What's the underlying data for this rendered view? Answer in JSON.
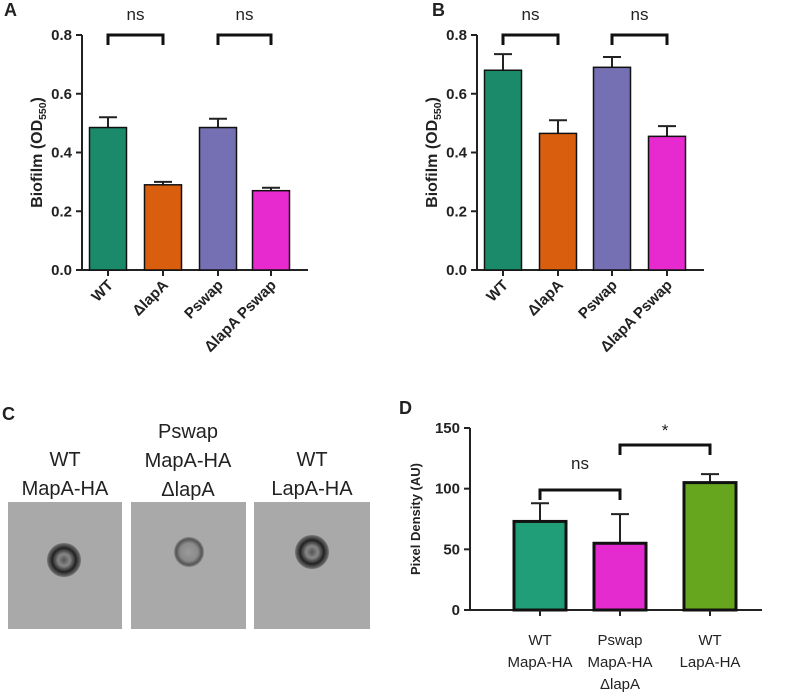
{
  "chart_data": [
    {
      "type": "bar",
      "panel": "A",
      "ylabel": [
        "Biofilm (OD",
        "550",
        ")"
      ],
      "categories": [
        "WT",
        "ΔlapA",
        "Pswap",
        "ΔlapA Pswap"
      ],
      "values": [
        0.485,
        0.29,
        0.485,
        0.27
      ],
      "errors": [
        0.035,
        0.01,
        0.03,
        0.01
      ],
      "colors": [
        "#1b8a6b",
        "#d95f0e",
        "#7570b3",
        "#e729d0"
      ],
      "ylim": [
        0,
        0.8
      ],
      "yticks": [
        {
          "value": 0,
          "label": "0.0"
        },
        0.2,
        0.4,
        0.6,
        0.8
      ],
      "annotations": [
        "ns",
        "ns"
      ]
    },
    {
      "type": "bar",
      "panel": "B",
      "ylabel": [
        "Biofilm (OD",
        "550",
        ")"
      ],
      "categories": [
        "WT",
        "ΔlapA",
        "Pswap",
        "ΔlapA Pswap"
      ],
      "values": [
        0.68,
        0.465,
        0.69,
        0.455
      ],
      "errors": [
        0.055,
        0.045,
        0.035,
        0.035
      ],
      "colors": [
        "#1b8a6b",
        "#d95f0e",
        "#7570b3",
        "#e729d0"
      ],
      "ylim": [
        0,
        0.8
      ],
      "yticks": [
        {
          "value": 0,
          "label": "0.0"
        },
        0.2,
        0.4,
        0.6,
        0.8
      ],
      "annotations": [
        "ns",
        "ns"
      ]
    },
    {
      "type": "bar",
      "panel": "D",
      "ylabel": [
        "Pixel Density  (AU)"
      ],
      "categories": [
        [
          "WT",
          "MapA-HA"
        ],
        [
          "Pswap",
          "MapA-HA",
          "ΔlapA"
        ],
        [
          "WT",
          "LapA-HA"
        ]
      ],
      "values": [
        73,
        55,
        105
      ],
      "errors": [
        15,
        24,
        7
      ],
      "colors": [
        "#1f9e77",
        "#e42bd0",
        "#66a61e"
      ],
      "ylim": [
        0,
        150
      ],
      "yticks": [
        0,
        50,
        100,
        150
      ],
      "annotations": [
        "ns",
        "*"
      ]
    }
  ],
  "blot_panel": {
    "label": "C",
    "lanes": [
      [
        "WT",
        "MapA-HA"
      ],
      [
        "Pswap",
        "MapA-HA",
        "ΔlapA"
      ],
      [
        "WT",
        "LapA-HA"
      ]
    ]
  }
}
